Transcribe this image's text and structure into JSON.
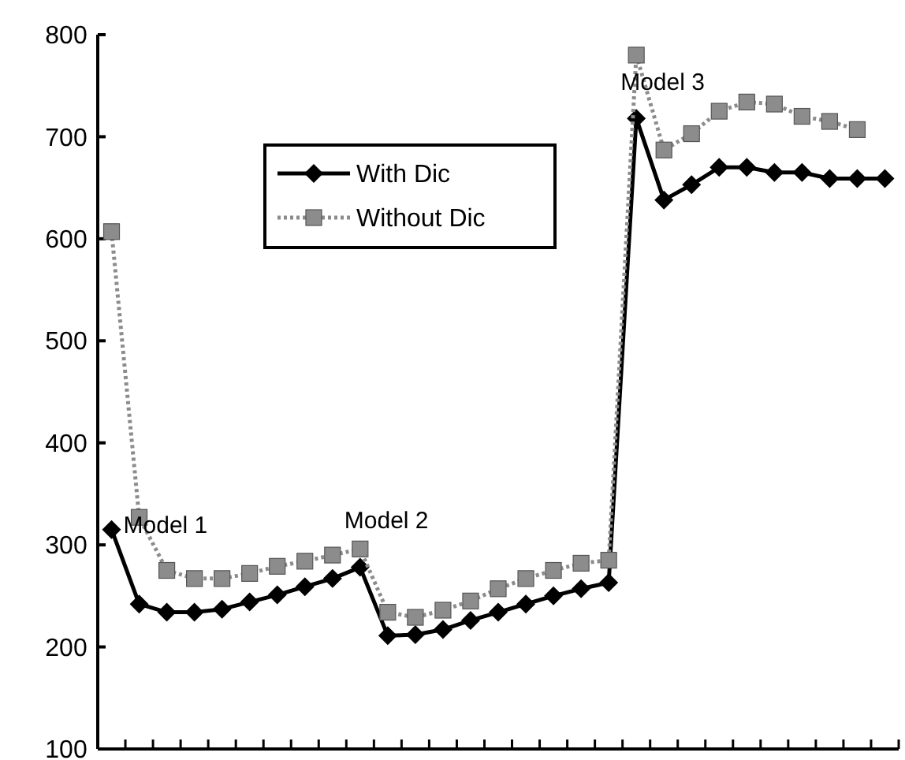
{
  "chart_data": {
    "type": "line",
    "categories": [
      null,
      null,
      null,
      null,
      null,
      null,
      null,
      null,
      null,
      null,
      null,
      null,
      null,
      null,
      null,
      null,
      null,
      null,
      null,
      null,
      null,
      null,
      null,
      null,
      null,
      null,
      null,
      null,
      null
    ],
    "series": [
      {
        "name": "With Dic",
        "color": "#000000",
        "marker": "diamond",
        "values": [
          315,
          242,
          234,
          234,
          237,
          244,
          251,
          259,
          267,
          278,
          211,
          212,
          217,
          226,
          234,
          242,
          250,
          257,
          263,
          718,
          638,
          653,
          670,
          670,
          665,
          665,
          659,
          659,
          659
        ]
      },
      {
        "name": "Without Dic",
        "color": "#8c8c8c",
        "marker": "square",
        "line_style": "dotted",
        "values": [
          607,
          327,
          275,
          267,
          267,
          272,
          279,
          284,
          290,
          296,
          234,
          229,
          236,
          245,
          257,
          267,
          275,
          282,
          285,
          780,
          687,
          703,
          725,
          734,
          732,
          720,
          715,
          707,
          null
        ]
      }
    ],
    "ylim": [
      100,
      800
    ],
    "yticks": [
      100,
      200,
      300,
      400,
      500,
      600,
      700,
      800
    ],
    "tick_labels": "y",
    "grid": false,
    "legend": "top",
    "annotations": [
      "Model 1",
      "Model 2",
      "Model 3"
    ]
  }
}
